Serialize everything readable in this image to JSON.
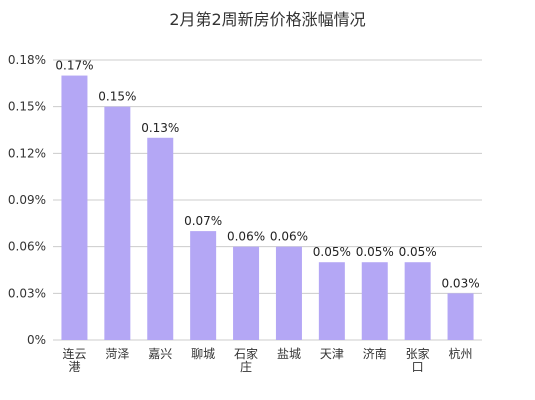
{
  "chart_data": {
    "type": "bar",
    "title": "2月第2周新房价格涨幅情况",
    "xlabel": "",
    "ylabel": "",
    "categories": [
      "连云港",
      "菏泽",
      "嘉兴",
      "聊城",
      "石家庄",
      "盐城",
      "天津",
      "济南",
      "张家口",
      "杭州"
    ],
    "values": [
      0.17,
      0.15,
      0.13,
      0.07,
      0.06,
      0.06,
      0.05,
      0.05,
      0.05,
      0.03
    ],
    "data_labels": [
      "0.17%",
      "0.15%",
      "0.13%",
      "0.07%",
      "0.06%",
      "0.06%",
      "0.05%",
      "0.05%",
      "0.05%",
      "0.03%"
    ],
    "y_ticks": [
      0,
      0.03,
      0.06,
      0.09,
      0.12,
      0.15,
      0.18
    ],
    "y_tick_labels": [
      "0%",
      "0.03%",
      "0.06%",
      "0.09%",
      "0.12%",
      "0.15%",
      "0.18%"
    ],
    "ylim": [
      0,
      0.18
    ],
    "grid": true,
    "bar_color": "#b4a7f5",
    "grid_color": "#cccccc"
  }
}
